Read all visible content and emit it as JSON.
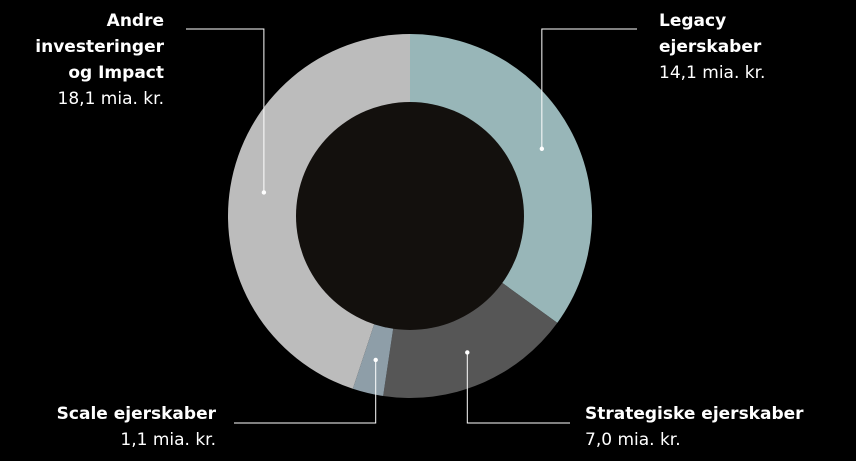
{
  "chart_data": {
    "type": "pie",
    "variant": "donut",
    "unit": "mia. kr.",
    "slices": [
      {
        "key": "legacy",
        "name": "Legacy ejerskaber",
        "value": 14.1,
        "value_label": "14,1 mia. kr.",
        "color": "#98b6b8"
      },
      {
        "key": "strategiske",
        "name": "Strategiske ejerskaber",
        "value": 7.0,
        "value_label": "7,0 mia. kr.",
        "color": "#565656"
      },
      {
        "key": "scale",
        "name": "Scale ejerskaber",
        "value": 1.1,
        "value_label": "1,1 mia. kr.",
        "color": "#8e9ea8"
      },
      {
        "key": "andre",
        "name": "Andre investeringer og Impact",
        "value": 18.1,
        "value_label": "18,1 mia. kr.",
        "color": "#bcbcbc"
      }
    ],
    "center_color": "#13100d",
    "background": "#000000",
    "label_name_lines": {
      "andre": [
        "Andre",
        "investeringer",
        "og Impact"
      ],
      "legacy": [
        "Legacy",
        "ejerskaber"
      ],
      "scale": [
        "Scale ejerskaber"
      ],
      "strategiske": [
        "Strategiske ejerskaber"
      ]
    }
  }
}
